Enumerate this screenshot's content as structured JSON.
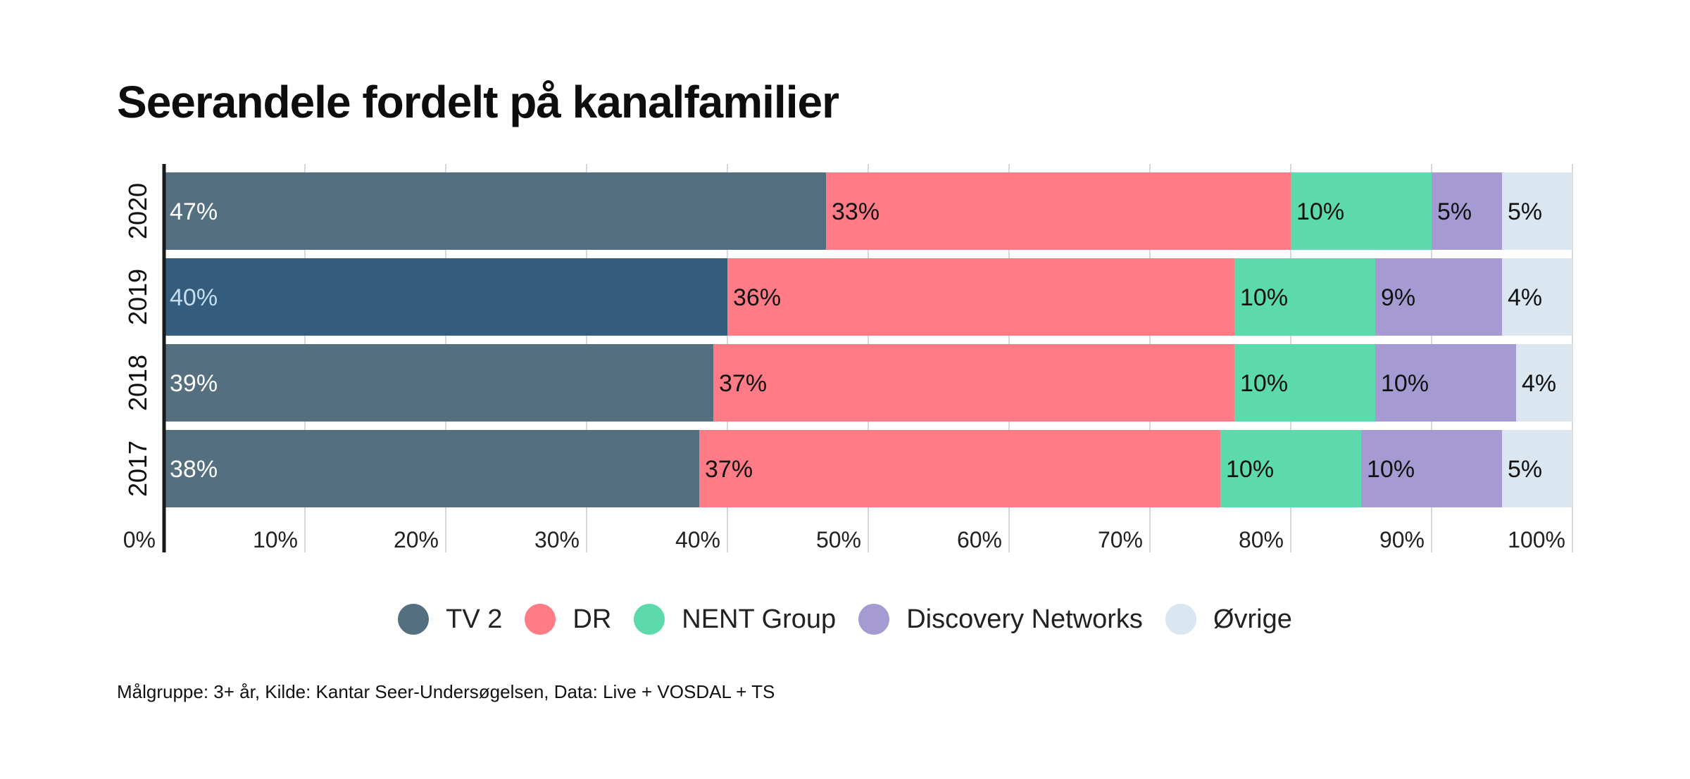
{
  "title": "Seerandele fordelt på kanalfamilier",
  "footnote": "Målgruppe: 3+ år, Kilde: Kantar Seer-Undersøgelsen, Data: Live + VOSDAL + TS",
  "colors": {
    "TV 2": "#536f80",
    "TV 2 highlight": "#345c7c",
    "DR": "#ff7b85",
    "NENT Group": "#5ddaab",
    "Discovery Networks": "#a59bd2",
    "Øvrige": "#dbe7f0",
    "label_dark": "#111111",
    "label_light": "#ffffff",
    "label_highlight": "#c6def1"
  },
  "chart_data": {
    "type": "bar",
    "orientation": "horizontal",
    "stacked": true,
    "categories": [
      "2020",
      "2019",
      "2018",
      "2017"
    ],
    "highlight_category": "2019",
    "series": [
      {
        "name": "TV 2",
        "values": [
          47,
          40,
          39,
          38
        ],
        "labels": [
          "47%",
          "40%",
          "39%",
          "38%"
        ]
      },
      {
        "name": "DR",
        "values": [
          33,
          36,
          37,
          37
        ],
        "labels": [
          "33%",
          "36%",
          "37%",
          "37%"
        ]
      },
      {
        "name": "NENT Group",
        "values": [
          10,
          10,
          10,
          10
        ],
        "labels": [
          "10%",
          "10%",
          "10%",
          "10%"
        ]
      },
      {
        "name": "Discovery Networks",
        "values": [
          5,
          9,
          10,
          10
        ],
        "labels": [
          "5%",
          "9%",
          "10%",
          "10%"
        ]
      },
      {
        "name": "Øvrige",
        "values": [
          5,
          4,
          4,
          5
        ],
        "labels": [
          "5%",
          "4%",
          "4%",
          "5%"
        ]
      }
    ],
    "x_ticks": [
      "0%",
      "10%",
      "20%",
      "30%",
      "40%",
      "50%",
      "60%",
      "70%",
      "80%",
      "90%",
      "100%"
    ],
    "xlim": [
      0,
      100
    ],
    "grid": true,
    "legend_position": "bottom-center"
  }
}
